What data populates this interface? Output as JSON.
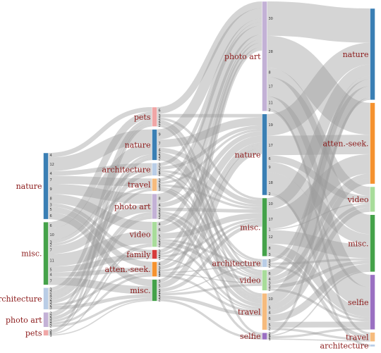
{
  "chart_data": {
    "type": "sankey",
    "flow_color": "#9a9a9a",
    "columns": [
      {
        "nodes": [
          {
            "id": "c0_nature",
            "label": "nature",
            "color": "#3a7fb4"
          },
          {
            "id": "c0_misc",
            "label": "misc.",
            "color": "#45a24a"
          },
          {
            "id": "c0_architecture",
            "label": "architecture",
            "color": "#b9cde6"
          },
          {
            "id": "c0_photoart",
            "label": "photo art",
            "color": "#c3b1d6"
          },
          {
            "id": "c0_pets",
            "label": "pets",
            "color": "#f0a6a6"
          }
        ]
      },
      {
        "nodes": [
          {
            "id": "c1_pets",
            "label": "pets",
            "color": "#f0a6a6"
          },
          {
            "id": "c1_nature",
            "label": "nature",
            "color": "#3a7fb4"
          },
          {
            "id": "c1_architecture",
            "label": "architecture",
            "color": "#b9cde6"
          },
          {
            "id": "c1_travel",
            "label": "travel",
            "color": "#f6bb7d"
          },
          {
            "id": "c1_photoart",
            "label": "photo art",
            "color": "#c3b1d6"
          },
          {
            "id": "c1_video",
            "label": "video",
            "color": "#a8dc9a"
          },
          {
            "id": "c1_family",
            "label": "family",
            "color": "#d63b3b"
          },
          {
            "id": "c1_attenseek",
            "label": "atten.-seek.",
            "color": "#f5922f"
          },
          {
            "id": "c1_misc",
            "label": "misc.",
            "color": "#45a24a"
          }
        ]
      },
      {
        "nodes": [
          {
            "id": "c2_photoart",
            "label": "photo art",
            "color": "#c3b1d6"
          },
          {
            "id": "c2_nature",
            "label": "nature",
            "color": "#3a7fb4"
          },
          {
            "id": "c2_misc",
            "label": "misc.",
            "color": "#45a24a"
          },
          {
            "id": "c2_architecture",
            "label": "architecture",
            "color": "#b9cde6"
          },
          {
            "id": "c2_video",
            "label": "video",
            "color": "#a8dc9a"
          },
          {
            "id": "c2_travel",
            "label": "travel",
            "color": "#f6bb7d"
          },
          {
            "id": "c2_selfie",
            "label": "selfie",
            "color": "#9a70c2"
          }
        ]
      },
      {
        "nodes": [
          {
            "id": "c3_nature",
            "label": "nature",
            "color": "#3a7fb4"
          },
          {
            "id": "c3_attenseek",
            "label": "atten.-seek.",
            "color": "#f5922f"
          },
          {
            "id": "c3_video",
            "label": "video",
            "color": "#a8dc9a"
          },
          {
            "id": "c3_misc",
            "label": "misc.",
            "color": "#45a24a"
          },
          {
            "id": "c3_selfie",
            "label": "selfie",
            "color": "#9a70c2"
          },
          {
            "id": "c3_travel",
            "label": "travel",
            "color": "#f6bb7d"
          },
          {
            "id": "c3_architecture",
            "label": "architecture",
            "color": "#b9cde6"
          }
        ]
      }
    ],
    "links": [
      {
        "source": "c0_nature",
        "target": "c1_pets",
        "value": 4
      },
      {
        "source": "c0_nature",
        "target": "c1_nature",
        "value": 12
      },
      {
        "source": "c0_nature",
        "target": "c1_architecture",
        "value": 4
      },
      {
        "source": "c0_nature",
        "target": "c1_travel",
        "value": 7
      },
      {
        "source": "c0_nature",
        "target": "c1_photoart",
        "value": 9
      },
      {
        "source": "c0_nature",
        "target": "c1_video",
        "value": 8
      },
      {
        "source": "c0_nature",
        "target": "c1_family",
        "value": 3
      },
      {
        "source": "c0_nature",
        "target": "c1_attenseek",
        "value": 5
      },
      {
        "source": "c0_nature",
        "target": "c1_misc",
        "value": 6
      },
      {
        "source": "c0_misc",
        "target": "c1_pets",
        "value": 6
      },
      {
        "source": "c0_misc",
        "target": "c1_nature",
        "value": 10
      },
      {
        "source": "c0_misc",
        "target": "c1_architecture",
        "value": 3
      },
      {
        "source": "c0_misc",
        "target": "c1_travel",
        "value": 2
      },
      {
        "source": "c0_misc",
        "target": "c1_photoart",
        "value": 7
      },
      {
        "source": "c0_misc",
        "target": "c1_video",
        "value": 11
      },
      {
        "source": "c0_misc",
        "target": "c1_family",
        "value": 5
      },
      {
        "source": "c0_misc",
        "target": "c1_attenseek",
        "value": 4
      },
      {
        "source": "c0_misc",
        "target": "c1_misc",
        "value": 7
      },
      {
        "source": "c0_architecture",
        "target": "c1_pets",
        "value": 3
      },
      {
        "source": "c0_architecture",
        "target": "c1_nature",
        "value": 2
      },
      {
        "source": "c0_architecture",
        "target": "c1_architecture",
        "value": 4
      },
      {
        "source": "c0_architecture",
        "target": "c1_travel",
        "value": 2
      },
      {
        "source": "c0_architecture",
        "target": "c1_photoart",
        "value": 3
      },
      {
        "source": "c0_architecture",
        "target": "c1_attenseek",
        "value": 2
      },
      {
        "source": "c0_architecture",
        "target": "c1_misc",
        "value": 3
      },
      {
        "source": "c0_photoart",
        "target": "c1_pets",
        "value": 2
      },
      {
        "source": "c0_photoart",
        "target": "c1_nature",
        "value": 2
      },
      {
        "source": "c0_photoart",
        "target": "c1_photoart",
        "value": 3
      },
      {
        "source": "c0_photoart",
        "target": "c1_video",
        "value": 2
      },
      {
        "source": "c0_photoart",
        "target": "c1_attenseek",
        "value": 2
      },
      {
        "source": "c0_photoart",
        "target": "c1_misc",
        "value": 2
      },
      {
        "source": "c0_pets",
        "target": "c1_pets",
        "value": 2
      },
      {
        "source": "c0_pets",
        "target": "c1_nature",
        "value": 1
      },
      {
        "source": "c0_pets",
        "target": "c1_video",
        "value": 1
      },
      {
        "source": "c0_pets",
        "target": "c1_misc",
        "value": 1
      },
      {
        "source": "c1_pets",
        "target": "c2_photoart",
        "value": 6
      },
      {
        "source": "c1_pets",
        "target": "c2_nature",
        "value": 3
      },
      {
        "source": "c1_pets",
        "target": "c2_misc",
        "value": 2
      },
      {
        "source": "c1_pets",
        "target": "c2_video",
        "value": 2
      },
      {
        "source": "c1_pets",
        "target": "c2_travel",
        "value": 2
      },
      {
        "source": "c1_pets",
        "target": "c2_selfie",
        "value": 2
      },
      {
        "source": "c1_nature",
        "target": "c2_photoart",
        "value": 9
      },
      {
        "source": "c1_nature",
        "target": "c2_nature",
        "value": 7
      },
      {
        "source": "c1_nature",
        "target": "c2_misc",
        "value": 4
      },
      {
        "source": "c1_nature",
        "target": "c2_architecture",
        "value": 2
      },
      {
        "source": "c1_nature",
        "target": "c2_video",
        "value": 3
      },
      {
        "source": "c1_nature",
        "target": "c2_travel",
        "value": 2
      },
      {
        "source": "c1_architecture",
        "target": "c2_photoart",
        "value": 3
      },
      {
        "source": "c1_architecture",
        "target": "c2_nature",
        "value": 3
      },
      {
        "source": "c1_architecture",
        "target": "c2_misc",
        "value": 2
      },
      {
        "source": "c1_architecture",
        "target": "c2_architecture",
        "value": 1
      },
      {
        "source": "c1_architecture",
        "target": "c2_travel",
        "value": 2
      },
      {
        "source": "c1_travel",
        "target": "c2_photoart",
        "value": 3
      },
      {
        "source": "c1_travel",
        "target": "c2_nature",
        "value": 2
      },
      {
        "source": "c1_travel",
        "target": "c2_misc",
        "value": 2
      },
      {
        "source": "c1_travel",
        "target": "c2_video",
        "value": 1
      },
      {
        "source": "c1_travel",
        "target": "c2_travel",
        "value": 3
      },
      {
        "source": "c1_photoart",
        "target": "c2_photoart",
        "value": 8
      },
      {
        "source": "c1_photoart",
        "target": "c2_nature",
        "value": 4
      },
      {
        "source": "c1_photoart",
        "target": "c2_misc",
        "value": 3
      },
      {
        "source": "c1_photoart",
        "target": "c2_video",
        "value": 2
      },
      {
        "source": "c1_photoart",
        "target": "c2_travel",
        "value": 3
      },
      {
        "source": "c1_photoart",
        "target": "c2_selfie",
        "value": 2
      },
      {
        "source": "c1_video",
        "target": "c2_photoart",
        "value": 4
      },
      {
        "source": "c1_video",
        "target": "c2_nature",
        "value": 6
      },
      {
        "source": "c1_video",
        "target": "c2_misc",
        "value": 5
      },
      {
        "source": "c1_video",
        "target": "c2_architecture",
        "value": 2
      },
      {
        "source": "c1_video",
        "target": "c2_video",
        "value": 3
      },
      {
        "source": "c1_video",
        "target": "c2_travel",
        "value": 2
      },
      {
        "source": "c1_family",
        "target": "c2_photoart",
        "value": 3
      },
      {
        "source": "c1_family",
        "target": "c2_nature",
        "value": 2
      },
      {
        "source": "c1_family",
        "target": "c2_misc",
        "value": 2
      },
      {
        "source": "c1_family",
        "target": "c2_travel",
        "value": 1
      },
      {
        "source": "c1_attenseek",
        "target": "c2_photoart",
        "value": 4
      },
      {
        "source": "c1_attenseek",
        "target": "c2_nature",
        "value": 3
      },
      {
        "source": "c1_attenseek",
        "target": "c2_misc",
        "value": 2
      },
      {
        "source": "c1_attenseek",
        "target": "c2_architecture",
        "value": 1
      },
      {
        "source": "c1_attenseek",
        "target": "c2_video",
        "value": 1
      },
      {
        "source": "c1_attenseek",
        "target": "c2_travel",
        "value": 2
      },
      {
        "source": "c1_misc",
        "target": "c2_photoart",
        "value": 3
      },
      {
        "source": "c1_misc",
        "target": "c2_nature",
        "value": 5
      },
      {
        "source": "c1_misc",
        "target": "c2_misc",
        "value": 3
      },
      {
        "source": "c1_misc",
        "target": "c2_architecture",
        "value": 1
      },
      {
        "source": "c1_misc",
        "target": "c2_video",
        "value": 2
      },
      {
        "source": "c1_misc",
        "target": "c2_travel",
        "value": 3
      },
      {
        "source": "c1_misc",
        "target": "c2_selfie",
        "value": 2
      },
      {
        "source": "c2_photoart",
        "target": "c3_nature",
        "value": 30
      },
      {
        "source": "c2_photoart",
        "target": "c3_attenseek",
        "value": 28
      },
      {
        "source": "c2_photoart",
        "target": "c3_video",
        "value": 8
      },
      {
        "source": "c2_photoart",
        "target": "c3_misc",
        "value": 17
      },
      {
        "source": "c2_photoart",
        "target": "c3_selfie",
        "value": 11
      },
      {
        "source": "c2_photoart",
        "target": "c3_travel",
        "value": 2
      },
      {
        "source": "c2_nature",
        "target": "c3_nature",
        "value": 19
      },
      {
        "source": "c2_nature",
        "target": "c3_attenseek",
        "value": 17
      },
      {
        "source": "c2_nature",
        "target": "c3_video",
        "value": 6
      },
      {
        "source": "c2_nature",
        "target": "c3_misc",
        "value": 9
      },
      {
        "source": "c2_nature",
        "target": "c3_selfie",
        "value": 18
      },
      {
        "source": "c2_nature",
        "target": "c3_architecture",
        "value": 2
      },
      {
        "source": "c2_misc",
        "target": "c3_nature",
        "value": 10
      },
      {
        "source": "c2_misc",
        "target": "c3_attenseek",
        "value": 17
      },
      {
        "source": "c2_misc",
        "target": "c3_video",
        "value": 1
      },
      {
        "source": "c2_misc",
        "target": "c3_misc",
        "value": 12
      },
      {
        "source": "c2_misc",
        "target": "c3_selfie",
        "value": 8
      },
      {
        "source": "c2_misc",
        "target": "c3_travel",
        "value": 3
      },
      {
        "source": "c2_architecture",
        "target": "c3_nature",
        "value": 3
      },
      {
        "source": "c2_architecture",
        "target": "c3_misc",
        "value": 2
      },
      {
        "source": "c2_architecture",
        "target": "c3_selfie",
        "value": 2
      },
      {
        "source": "c2_video",
        "target": "c3_nature",
        "value": 6
      },
      {
        "source": "c2_video",
        "target": "c3_attenseek",
        "value": 4
      },
      {
        "source": "c2_video",
        "target": "c3_video",
        "value": 3
      },
      {
        "source": "c2_video",
        "target": "c3_misc",
        "value": 3
      },
      {
        "source": "c2_video",
        "target": "c3_selfie",
        "value": 2
      },
      {
        "source": "c2_travel",
        "target": "c3_nature",
        "value": 10
      },
      {
        "source": "c2_travel",
        "target": "c3_attenseek",
        "value": 5
      },
      {
        "source": "c2_travel",
        "target": "c3_video",
        "value": 4
      },
      {
        "source": "c2_travel",
        "target": "c3_misc",
        "value": 6
      },
      {
        "source": "c2_travel",
        "target": "c3_selfie",
        "value": 5
      },
      {
        "source": "c2_travel",
        "target": "c3_travel",
        "value": 2
      },
      {
        "source": "c2_selfie",
        "target": "c3_nature",
        "value": 2
      },
      {
        "source": "c2_selfie",
        "target": "c3_misc",
        "value": 1
      },
      {
        "source": "c2_selfie",
        "target": "c3_selfie",
        "value": 2
      },
      {
        "source": "c2_selfie",
        "target": "c3_travel",
        "value": 1
      }
    ]
  }
}
